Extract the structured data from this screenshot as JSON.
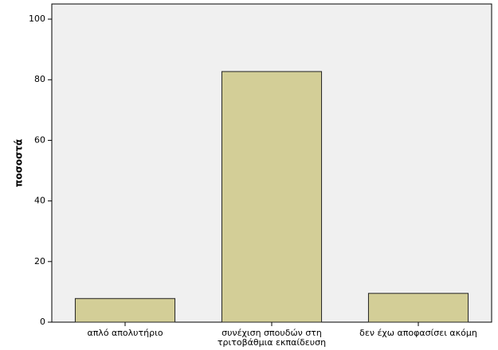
{
  "chart_data": {
    "type": "bar",
    "ylabel": "ποσοστά",
    "categories": [
      "απλό απολυτήριο",
      "συνέχιση σπουδών στη\nτριτοβάθμια εκπαίδευση",
      "δεν έχω αποφασίσει ακόμη"
    ],
    "values": [
      7.8,
      82.7,
      9.5
    ],
    "color": "#d3ce97",
    "ylim": [
      0,
      105
    ],
    "yticks": [
      0,
      20,
      40,
      60,
      80,
      100
    ]
  }
}
